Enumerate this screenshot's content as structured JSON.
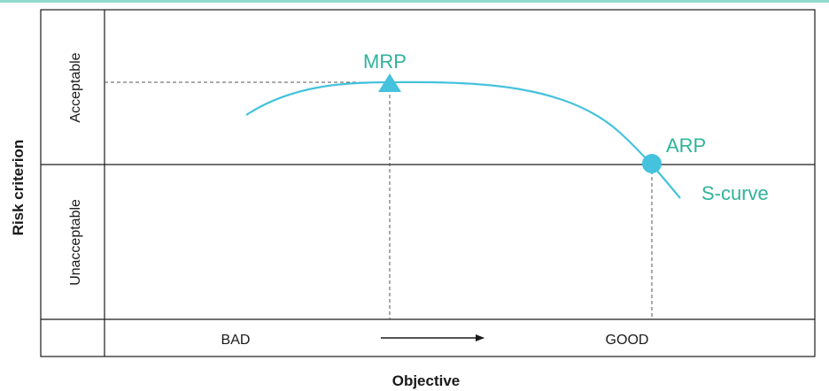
{
  "diagram": {
    "y_axis_title": "Risk criterion",
    "x_axis_title": "Objective",
    "y_regions": [
      "Acceptable",
      "Unacceptable"
    ],
    "x_labels": [
      "BAD",
      "GOOD"
    ],
    "points": [
      {
        "label": "MRP",
        "marker": "triangle"
      },
      {
        "label": "ARP",
        "marker": "circle"
      }
    ],
    "curve_label": "S-curve",
    "colors": {
      "curve": "#45c2dd",
      "label": "#2fb39b",
      "frame": "#1a1a1a",
      "guides": "#555555",
      "top_rule": "#8fd9cf"
    }
  }
}
